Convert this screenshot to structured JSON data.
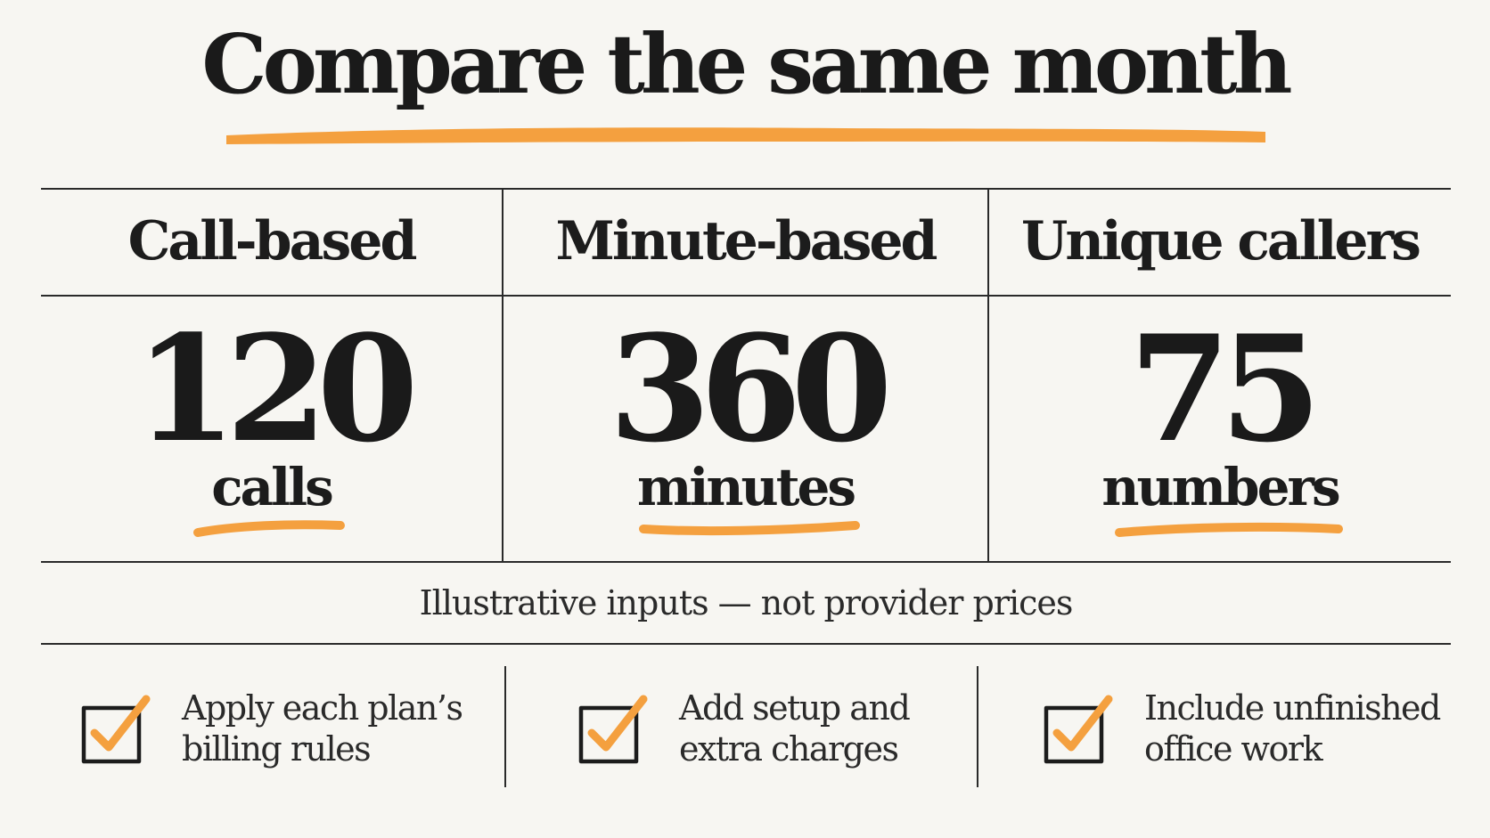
{
  "title": "Compare the same month",
  "accent_color": "#f4a03f",
  "columns": [
    {
      "heading": "Call-based",
      "value": "120",
      "unit": "calls"
    },
    {
      "heading": "Minute-based",
      "value": "360",
      "unit": "minutes"
    },
    {
      "heading": "Unique callers",
      "value": "75",
      "unit": "numbers"
    }
  ],
  "note": "Illustrative inputs — not provider prices",
  "checklist": [
    {
      "icon": "checkbox-checked-icon",
      "line1": "Apply each plan’s",
      "line2": "billing rules"
    },
    {
      "icon": "checkbox-checked-icon",
      "line1": "Add setup and",
      "line2": "extra charges"
    },
    {
      "icon": "checkbox-checked-icon",
      "line1": "Include unfinished",
      "line2": "office work"
    }
  ]
}
